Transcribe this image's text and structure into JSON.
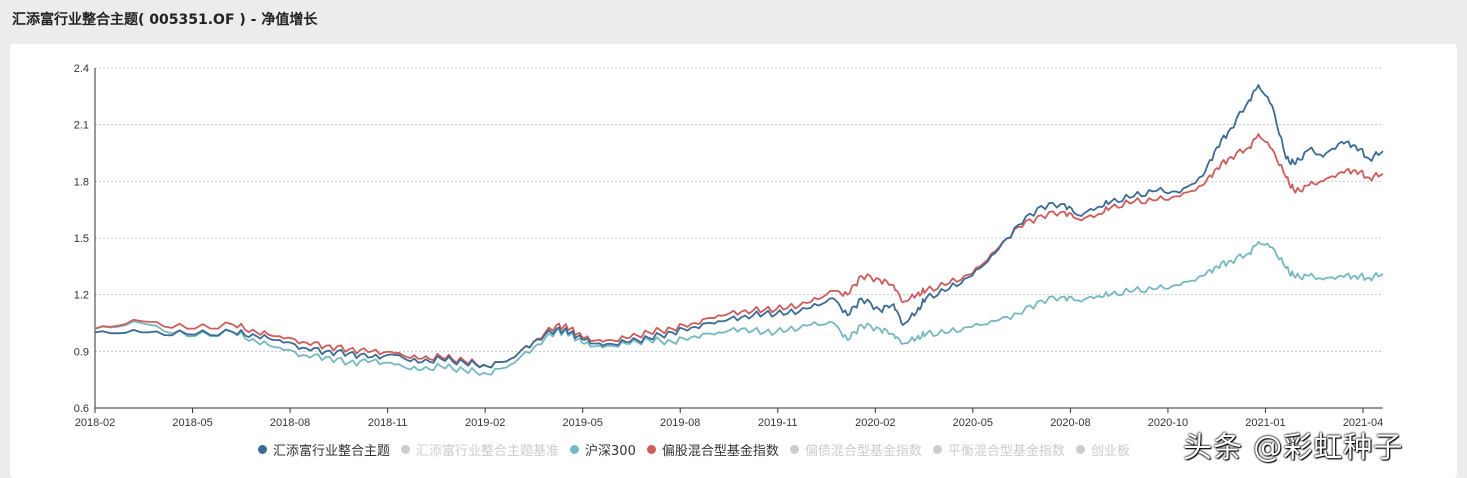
{
  "header": {
    "title": "汇添富行业整合主题( 005351.OF ) - 净值增长"
  },
  "watermark": "头条 @彩虹种子",
  "legend": [
    {
      "label": "汇添富行业整合主题",
      "color": "#3b6b95",
      "active": true
    },
    {
      "label": "汇添富行业整合主题基准",
      "color": "#cccccc",
      "active": false
    },
    {
      "label": "沪深300",
      "color": "#77b8c0",
      "active": true
    },
    {
      "label": "偏股混合型基金指数",
      "color": "#cd5c5c",
      "active": true
    },
    {
      "label": "偏债混合型基金指数",
      "color": "#cccccc",
      "active": false
    },
    {
      "label": "平衡混合型基金指数",
      "color": "#cccccc",
      "active": false
    },
    {
      "label": "创业板",
      "color": "#cccccc",
      "active": false
    }
  ],
  "chart_data": {
    "type": "line",
    "ylim": [
      0.6,
      2.4
    ],
    "yticks": [
      "0.6",
      "0.9",
      "1.2",
      "1.5",
      "1.8",
      "2.1",
      "2.4"
    ],
    "xticks": [
      "2018-02",
      "2018-05",
      "2018-08",
      "2018-11",
      "2019-02",
      "2019-05",
      "2019-08",
      "2019-11",
      "2020-02",
      "2020-05",
      "2020-08",
      "2020-10",
      "2021-01",
      "2021-04"
    ],
    "grid": true,
    "legend_position": "bottom",
    "series": [
      {
        "name": "汇添富行业整合主题",
        "color": "#3b6b95",
        "points": [
          [
            0,
            1.0
          ],
          [
            1,
            1.0
          ],
          [
            2,
            0.99
          ],
          [
            3,
            1.0
          ],
          [
            3.5,
            0.98
          ],
          [
            4,
            0.96
          ],
          [
            4.5,
            0.92
          ],
          [
            5,
            0.9
          ],
          [
            5.5,
            0.89
          ],
          [
            6,
            0.87
          ],
          [
            6.5,
            0.88
          ],
          [
            7,
            0.84
          ],
          [
            7.5,
            0.86
          ],
          [
            8,
            0.84
          ],
          [
            8.5,
            0.82
          ],
          [
            9,
            0.86
          ],
          [
            9.5,
            0.95
          ],
          [
            10,
            1.02
          ],
          [
            10.3,
            1.0
          ],
          [
            10.6,
            0.96
          ],
          [
            11,
            0.93
          ],
          [
            11.5,
            0.95
          ],
          [
            12,
            0.97
          ],
          [
            12.5,
            1.0
          ],
          [
            13,
            1.03
          ],
          [
            13.5,
            1.06
          ],
          [
            14,
            1.08
          ],
          [
            14.5,
            1.1
          ],
          [
            15,
            1.1
          ],
          [
            15.5,
            1.13
          ],
          [
            16,
            1.18
          ],
          [
            16.3,
            1.09
          ],
          [
            16.6,
            1.18
          ],
          [
            17,
            1.12
          ],
          [
            17.3,
            1.15
          ],
          [
            17.5,
            1.04
          ],
          [
            17.8,
            1.11
          ],
          [
            18,
            1.18
          ],
          [
            18.5,
            1.23
          ],
          [
            19,
            1.3
          ],
          [
            19.5,
            1.42
          ],
          [
            20,
            1.57
          ],
          [
            20.5,
            1.67
          ],
          [
            21,
            1.68
          ],
          [
            21.3,
            1.62
          ],
          [
            21.7,
            1.66
          ],
          [
            22,
            1.69
          ],
          [
            22.5,
            1.72
          ],
          [
            23,
            1.75
          ],
          [
            23.5,
            1.74
          ],
          [
            24,
            1.83
          ],
          [
            24.3,
            1.98
          ],
          [
            24.6,
            2.08
          ],
          [
            25,
            2.23
          ],
          [
            25.2,
            2.31
          ],
          [
            25.5,
            2.2
          ],
          [
            25.8,
            1.92
          ],
          [
            26,
            1.89
          ],
          [
            26.3,
            1.97
          ],
          [
            26.6,
            1.93
          ],
          [
            27,
            2.01
          ],
          [
            27.3,
            1.99
          ],
          [
            27.6,
            1.92
          ],
          [
            27.9,
            1.96
          ]
        ]
      },
      {
        "name": "沪深300",
        "color": "#77b8c0",
        "points": [
          [
            0,
            1.02
          ],
          [
            1,
            1.05
          ],
          [
            2,
            0.98
          ],
          [
            3,
            1.0
          ],
          [
            3.5,
            0.95
          ],
          [
            4,
            0.92
          ],
          [
            4.5,
            0.88
          ],
          [
            5,
            0.87
          ],
          [
            5.5,
            0.84
          ],
          [
            6,
            0.85
          ],
          [
            6.5,
            0.83
          ],
          [
            7,
            0.8
          ],
          [
            7.5,
            0.82
          ],
          [
            8,
            0.8
          ],
          [
            8.5,
            0.78
          ],
          [
            9,
            0.83
          ],
          [
            9.5,
            0.92
          ],
          [
            10,
            1.01
          ],
          [
            10.3,
            0.99
          ],
          [
            10.6,
            0.94
          ],
          [
            11,
            0.92
          ],
          [
            11.5,
            0.94
          ],
          [
            12,
            0.96
          ],
          [
            12.5,
            0.95
          ],
          [
            13,
            0.98
          ],
          [
            13.5,
            1.0
          ],
          [
            14,
            1.02
          ],
          [
            14.5,
            1.0
          ],
          [
            15,
            1.01
          ],
          [
            15.5,
            1.04
          ],
          [
            16,
            1.05
          ],
          [
            16.3,
            0.96
          ],
          [
            16.6,
            1.04
          ],
          [
            17,
            1.02
          ],
          [
            17.3,
            0.99
          ],
          [
            17.5,
            0.94
          ],
          [
            17.8,
            0.97
          ],
          [
            18,
            0.99
          ],
          [
            18.5,
            1.0
          ],
          [
            19,
            1.03
          ],
          [
            19.5,
            1.06
          ],
          [
            20,
            1.1
          ],
          [
            20.5,
            1.17
          ],
          [
            21,
            1.19
          ],
          [
            21.3,
            1.17
          ],
          [
            21.7,
            1.19
          ],
          [
            22,
            1.2
          ],
          [
            22.5,
            1.22
          ],
          [
            23,
            1.23
          ],
          [
            23.5,
            1.25
          ],
          [
            24,
            1.3
          ],
          [
            24.3,
            1.35
          ],
          [
            24.6,
            1.38
          ],
          [
            25,
            1.42
          ],
          [
            25.2,
            1.48
          ],
          [
            25.5,
            1.45
          ],
          [
            25.8,
            1.34
          ],
          [
            26,
            1.29
          ],
          [
            26.3,
            1.3
          ],
          [
            26.6,
            1.28
          ],
          [
            27,
            1.3
          ],
          [
            27.3,
            1.3
          ],
          [
            27.6,
            1.29
          ],
          [
            27.9,
            1.31
          ]
        ]
      },
      {
        "name": "偏股混合型基金指数",
        "color": "#cd5c5c",
        "points": [
          [
            0,
            1.02
          ],
          [
            1,
            1.06
          ],
          [
            2,
            1.02
          ],
          [
            3,
            1.04
          ],
          [
            3.5,
            1.0
          ],
          [
            4,
            0.98
          ],
          [
            4.5,
            0.95
          ],
          [
            5,
            0.93
          ],
          [
            5.5,
            0.91
          ],
          [
            6,
            0.9
          ],
          [
            6.5,
            0.89
          ],
          [
            7,
            0.86
          ],
          [
            7.5,
            0.87
          ],
          [
            8,
            0.85
          ],
          [
            8.5,
            0.82
          ],
          [
            9,
            0.86
          ],
          [
            9.5,
            0.95
          ],
          [
            10,
            1.04
          ],
          [
            10.3,
            1.02
          ],
          [
            10.6,
            0.97
          ],
          [
            11,
            0.95
          ],
          [
            11.5,
            0.97
          ],
          [
            12,
            1.0
          ],
          [
            12.5,
            1.02
          ],
          [
            13,
            1.05
          ],
          [
            13.5,
            1.09
          ],
          [
            14,
            1.11
          ],
          [
            14.5,
            1.12
          ],
          [
            15,
            1.13
          ],
          [
            15.5,
            1.16
          ],
          [
            16,
            1.22
          ],
          [
            16.3,
            1.2
          ],
          [
            16.6,
            1.3
          ],
          [
            17,
            1.28
          ],
          [
            17.3,
            1.25
          ],
          [
            17.5,
            1.16
          ],
          [
            17.8,
            1.2
          ],
          [
            18,
            1.22
          ],
          [
            18.5,
            1.26
          ],
          [
            19,
            1.31
          ],
          [
            19.5,
            1.43
          ],
          [
            20,
            1.56
          ],
          [
            20.5,
            1.62
          ],
          [
            21,
            1.64
          ],
          [
            21.3,
            1.6
          ],
          [
            21.7,
            1.62
          ],
          [
            22,
            1.66
          ],
          [
            22.5,
            1.69
          ],
          [
            23,
            1.7
          ],
          [
            23.5,
            1.72
          ],
          [
            24,
            1.78
          ],
          [
            24.3,
            1.87
          ],
          [
            24.6,
            1.93
          ],
          [
            25,
            1.98
          ],
          [
            25.2,
            2.05
          ],
          [
            25.5,
            1.97
          ],
          [
            25.8,
            1.82
          ],
          [
            26,
            1.74
          ],
          [
            26.3,
            1.78
          ],
          [
            26.6,
            1.8
          ],
          [
            27,
            1.85
          ],
          [
            27.3,
            1.86
          ],
          [
            27.6,
            1.82
          ],
          [
            27.9,
            1.84
          ]
        ]
      }
    ]
  }
}
